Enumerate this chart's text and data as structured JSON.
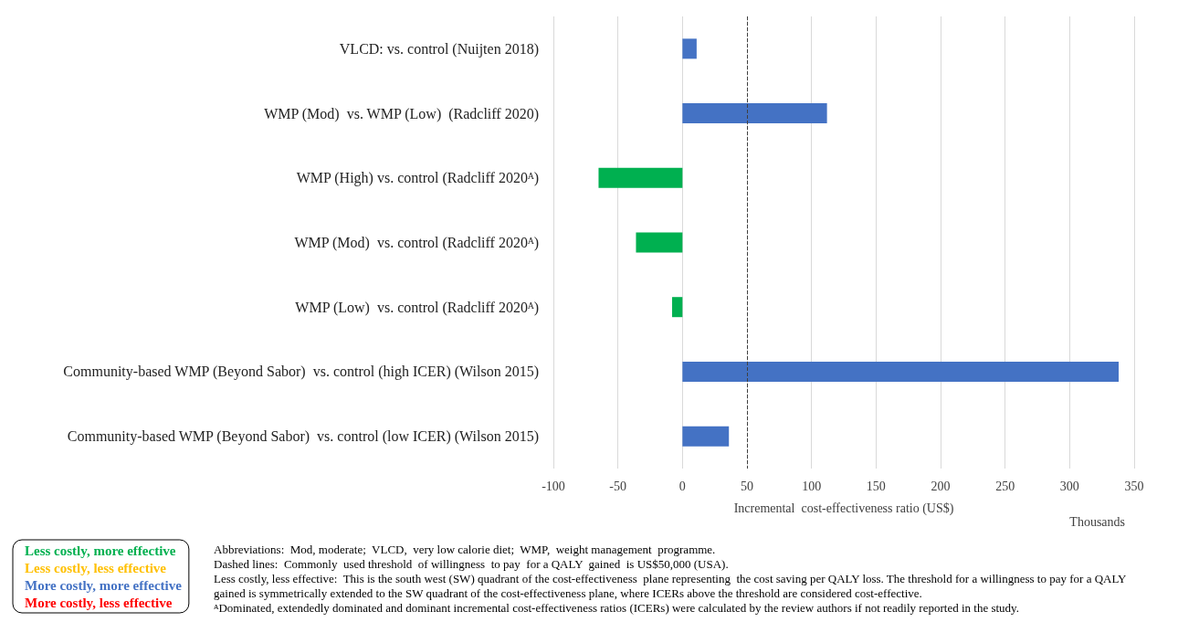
{
  "chart_data": {
    "type": "bar",
    "orientation": "horizontal",
    "stacked": true,
    "categories": [
      "VLCD: vs. control (Nuijten 2018)",
      "WMP (Mod)  vs. WMP (Low)  (Radcliff 2020)",
      "WMP (High) vs. control (Radcliff 2020ᴬ)",
      "WMP (Mod)  vs. control (Radcliff 2020ᴬ)",
      "WMP (Low)  vs. control (Radcliff 2020ᴬ)",
      "Community-based WMP (Beyond Sabor)  vs. control (high ICER) (Wilson 2015)",
      "Community-based WMP (Beyond Sabor)  vs. control (low ICER) (Wilson 2015)"
    ],
    "series": [
      {
        "name": "Less costly, more effective",
        "color": "#00b050",
        "values": [
          null,
          null,
          -65,
          -36,
          -8,
          null,
          null
        ]
      },
      {
        "name": "Less costly, less effective",
        "color": "#ffc000",
        "values": [
          null,
          null,
          null,
          null,
          null,
          null,
          null
        ]
      },
      {
        "name": "More costly, more effective",
        "color": "#4472c4",
        "values": [
          11,
          112,
          null,
          null,
          null,
          338,
          36
        ]
      },
      {
        "name": "More costly, less effective",
        "color": "#ff0000",
        "values": [
          null,
          null,
          null,
          null,
          null,
          null,
          null
        ]
      }
    ],
    "xlim": [
      -100,
      350
    ],
    "xticks": [
      -100,
      -50,
      0,
      50,
      100,
      150,
      200,
      250,
      300,
      350
    ],
    "xlabel": "Incremental  cost-effectiveness ratio (US$)",
    "ref_lines": [
      {
        "axis": "x",
        "value": 50,
        "line_style": "dashed",
        "color": "#404040"
      }
    ],
    "grid": "x",
    "legend": "bottom left",
    "annotations": [
      "Thousands",
      "Abbreviations:  Mod, moderate;  VLCD,  very low calorie diet;  WMP,  weight management  programme.",
      "Dashed lines:  Commonly  used threshold  of willingness  to pay  for a QALY  gained  is US$50,000 (USA).",
      "Less costly, less effective:  This is the south west (SW) quadrant of the cost-effectiveness  plane representing  the cost saving per QALY loss. The threshold for a willingness to pay for a QALY gained is symmetrically extended to the SW quadrant of the cost-effectiveness plane, where ICERs above the threshold are considered cost-effective.",
      "ᴬDominated, extendedly dominated and dominant incremental cost-effectiveness ratios (ICERs) were calculated by the review authors if not readily reported in the study."
    ]
  }
}
